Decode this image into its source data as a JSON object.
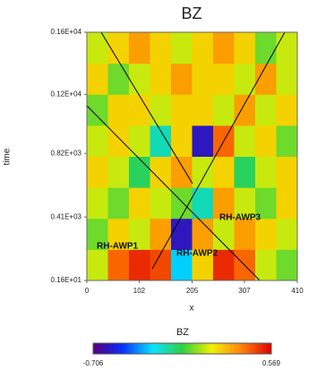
{
  "chart_data": {
    "type": "heatmap",
    "title": "BZ",
    "x_label": "x",
    "y_label": "time",
    "xlim": [
      0,
      410
    ],
    "xticks": [
      0,
      102,
      205,
      307,
      410
    ],
    "ylim": [
      1.6,
      1600
    ],
    "yticks": [
      {
        "value": 1.6,
        "label": "0.16E+01"
      },
      {
        "value": 410,
        "label": "0.41E+03"
      },
      {
        "value": 820,
        "label": "0.82E+03"
      },
      {
        "value": 1200,
        "label": "0.12E+04"
      },
      {
        "value": 1600,
        "label": "0.16E+04"
      }
    ],
    "z": [
      [
        0.1,
        0.4,
        0.5,
        0.45,
        -0.3,
        0.2,
        0.5,
        0.4,
        0.1,
        0.0
      ],
      [
        0.0,
        0.2,
        0.1,
        0.3,
        -0.6,
        0.3,
        0.1,
        0.3,
        0.2,
        0.1
      ],
      [
        0.1,
        0.0,
        0.2,
        0.1,
        0.0,
        -0.2,
        0.3,
        0.1,
        0.0,
        0.2
      ],
      [
        0.2,
        0.1,
        -0.1,
        0.2,
        0.3,
        0.1,
        0.2,
        -0.1,
        0.1,
        0.2
      ],
      [
        0.1,
        0.2,
        0.1,
        -0.2,
        0.2,
        -0.6,
        0.4,
        0.1,
        0.2,
        0.0
      ],
      [
        0.0,
        0.2,
        0.2,
        0.1,
        0.2,
        0.2,
        0.1,
        0.3,
        0.1,
        0.2
      ],
      [
        0.2,
        0.0,
        0.1,
        0.2,
        0.3,
        0.2,
        0.2,
        0.1,
        0.3,
        0.1
      ],
      [
        0.1,
        0.2,
        0.3,
        0.2,
        0.1,
        0.2,
        0.3,
        0.2,
        0.0,
        0.1
      ]
    ],
    "colorbar_title": "BZ",
    "zlim": [
      -0.706,
      0.569
    ],
    "colormap": [
      "#5a0080",
      "#0030ff",
      "#00e0ff",
      "#30d040",
      "#f0f000",
      "#ff8000",
      "#e00000"
    ],
    "annotations": [
      "RH-AWP1",
      "RH-AWP2",
      "RH-AWP3"
    ]
  }
}
